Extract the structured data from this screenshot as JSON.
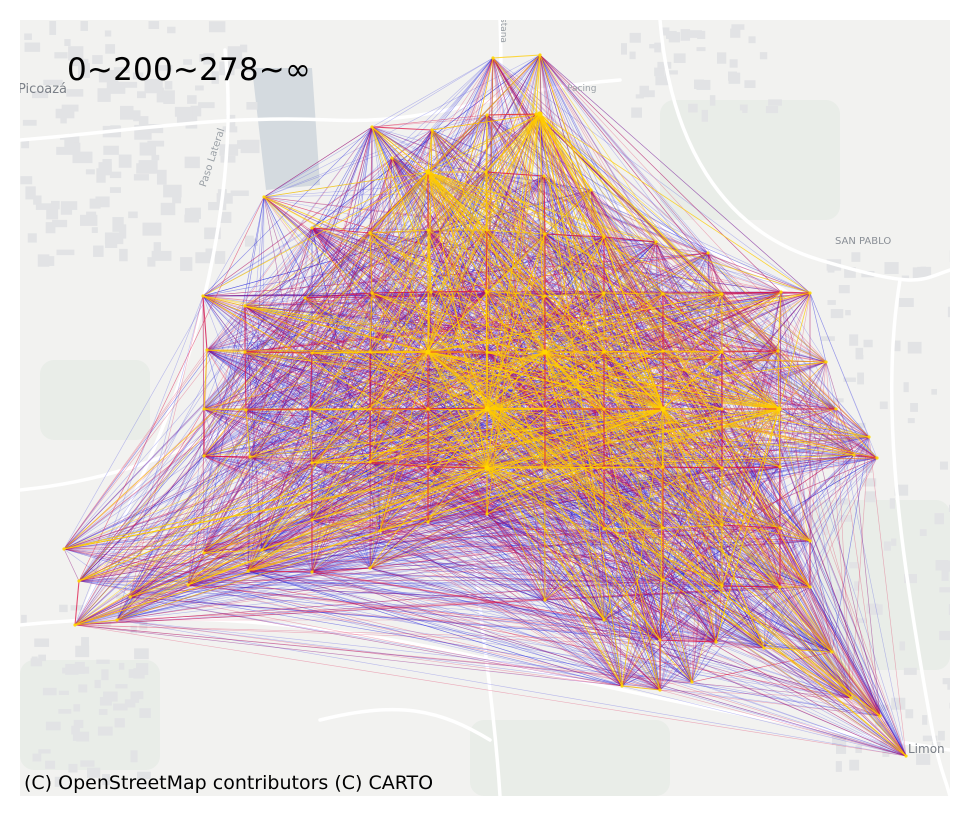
{
  "title": "0~200~278~∞",
  "attribution": "(C) OpenStreetMap contributors (C) CARTO",
  "basemap": {
    "style": "carto-light",
    "land_color": "#f2f2f0",
    "road_color": "#ffffff",
    "park_color": "#e6ebe6",
    "water_color": "#d4dadf",
    "place_labels": [
      {
        "name": "Picoazá"
      },
      {
        "name": "SAN PABLO"
      },
      {
        "name": "Paso Lateral"
      },
      {
        "name": "Limon"
      },
      {
        "name": "Pacing"
      },
      {
        "name": "stana"
      }
    ]
  },
  "flow_legend": {
    "breaks": [
      "0",
      "200",
      "278",
      "∞"
    ],
    "colors": [
      "#2222dd",
      "#dd1144",
      "#ffcc00"
    ]
  },
  "network": {
    "node_color": "#ffd700",
    "hub_count": 8
  }
}
